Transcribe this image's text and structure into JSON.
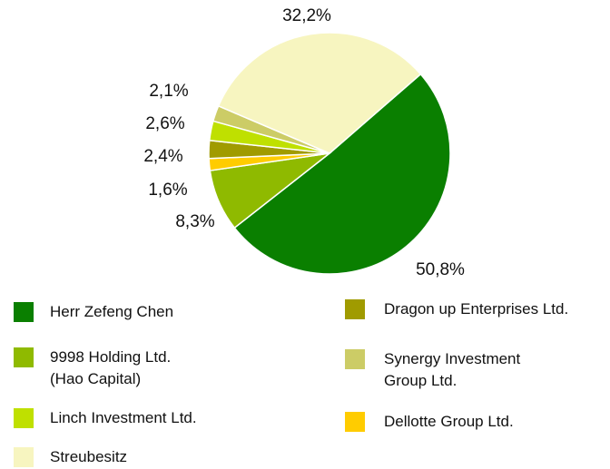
{
  "chart_data": {
    "type": "pie",
    "categories": [
      "Herr Zefeng Chen",
      "9998 Holding Ltd.\n(Hao Capital)",
      "Dellotte Group Ltd.",
      "Dragon up Enterprises Ltd.",
      "Linch Investment Ltd.",
      "Synergy Investment\nGroup Ltd.",
      "Streubesitz"
    ],
    "values": [
      50.8,
      8.3,
      1.6,
      2.4,
      2.6,
      2.1,
      32.2
    ],
    "value_labels": [
      "50,8%",
      "8,3%",
      "1,6%",
      "2,4%",
      "2,6%",
      "2,1%",
      "32,2%"
    ],
    "colors": [
      "#0a7f00",
      "#8fba00",
      "#ffcc00",
      "#a09b00",
      "#bfe000",
      "#cccc66",
      "#f7f5c0"
    ]
  }
}
